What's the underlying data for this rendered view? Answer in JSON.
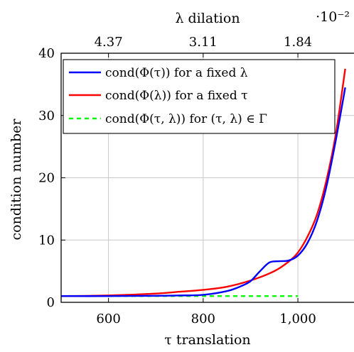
{
  "chart_data": {
    "type": "line",
    "xlabel": "τ translation",
    "ylabel": "condition number",
    "top_axis_label": "λ dilation",
    "top_axis_multiplier": "·10⁻²",
    "xlim": [
      500,
      1120
    ],
    "ylim": [
      0,
      40
    ],
    "grid": true,
    "legend_position": "top-left",
    "x_ticks": [
      {
        "value": 600,
        "label": "600"
      },
      {
        "value": 800,
        "label": "800"
      },
      {
        "value": 1000,
        "label": "1,000"
      }
    ],
    "y_ticks": [
      {
        "value": 0,
        "label": "0"
      },
      {
        "value": 10,
        "label": "10"
      },
      {
        "value": 20,
        "label": "20"
      },
      {
        "value": 30,
        "label": "30"
      },
      {
        "value": 40,
        "label": "40"
      }
    ],
    "top_ticks": [
      {
        "value": 600,
        "label": "4.37"
      },
      {
        "value": 800,
        "label": "3.11"
      },
      {
        "value": 1000,
        "label": "1.84"
      }
    ],
    "series": [
      {
        "name": "cond(Φ(τ)) for a fixed λ",
        "color": "#0000ff",
        "dashed": false,
        "x": [
          500,
          600,
          700,
          750,
          800,
          850,
          880,
          900,
          920,
          940,
          960,
          980,
          1000,
          1020,
          1040,
          1060,
          1080,
          1100
        ],
        "y": [
          1.0,
          1.0,
          1.05,
          1.1,
          1.2,
          1.8,
          2.6,
          3.4,
          5.0,
          6.4,
          6.6,
          6.7,
          7.5,
          9.5,
          13.0,
          18.5,
          26.0,
          34.5
        ]
      },
      {
        "name": "cond(Φ(λ)) for a fixed τ",
        "color": "#ff0000",
        "dashed": false,
        "x": [
          500,
          600,
          700,
          750,
          800,
          850,
          900,
          950,
          980,
          1000,
          1020,
          1040,
          1060,
          1080,
          1100
        ],
        "y": [
          1.0,
          1.1,
          1.4,
          1.7,
          2.0,
          2.5,
          3.5,
          5.0,
          6.5,
          8.0,
          10.5,
          14.0,
          19.5,
          27.0,
          37.5
        ]
      },
      {
        "name": "cond(Φ(τ, λ)) for (τ, λ) ∈ Γ",
        "color": "#00ff00",
        "dashed": true,
        "x": [
          500,
          1000
        ],
        "y": [
          1.0,
          1.0
        ]
      }
    ]
  }
}
